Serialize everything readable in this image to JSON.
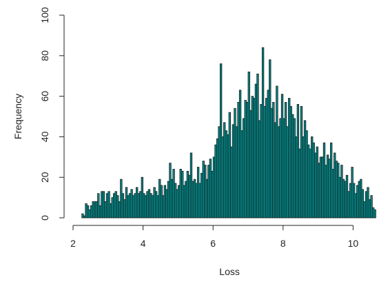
{
  "chart_data": {
    "type": "bar",
    "subtype": "histogram",
    "xlabel": "Loss",
    "ylabel": "Frequency",
    "title": "",
    "xlim": [
      2.0,
      10.6
    ],
    "ylim": [
      0,
      100
    ],
    "x_ticks": [
      2,
      4,
      6,
      8,
      10
    ],
    "y_ticks": [
      0,
      20,
      40,
      60,
      80,
      100
    ],
    "bar_color": "#008B8B",
    "bar_edge_color": "#1a1a1a",
    "bin_start": 2.25,
    "bin_width": 0.05,
    "values": [
      2,
      1,
      7,
      6,
      4,
      6,
      8,
      8,
      8,
      12,
      6,
      13,
      13,
      8,
      12,
      13,
      7,
      10,
      12,
      13,
      11,
      8,
      19,
      12,
      9,
      15,
      11,
      12,
      14,
      11,
      12,
      15,
      12,
      13,
      20,
      12,
      11,
      13,
      14,
      12,
      11,
      15,
      13,
      11,
      19,
      16,
      11,
      16,
      14,
      18,
      27,
      19,
      24,
      17,
      14,
      16,
      24,
      23,
      16,
      18,
      23,
      21,
      32,
      18,
      19,
      17,
      25,
      17,
      22,
      28,
      26,
      19,
      26,
      29,
      23,
      30,
      36,
      39,
      45,
      76,
      40,
      47,
      43,
      41,
      52,
      35,
      46,
      54,
      45,
      57,
      63,
      43,
      49,
      58,
      57,
      72,
      53,
      60,
      59,
      66,
      71,
      48,
      56,
      84,
      55,
      59,
      63,
      78,
      54,
      57,
      47,
      65,
      45,
      49,
      61,
      49,
      57,
      45,
      59,
      55,
      51,
      49,
      40,
      56,
      34,
      55,
      40,
      48,
      43,
      36,
      34,
      40,
      37,
      32,
      35,
      27,
      30,
      30,
      37,
      26,
      31,
      29,
      37,
      24,
      32,
      28,
      27,
      20,
      26,
      19,
      18,
      21,
      13,
      17,
      25,
      17,
      12,
      16,
      18,
      19,
      14,
      8,
      13,
      15,
      9,
      11,
      5,
      4
    ]
  }
}
